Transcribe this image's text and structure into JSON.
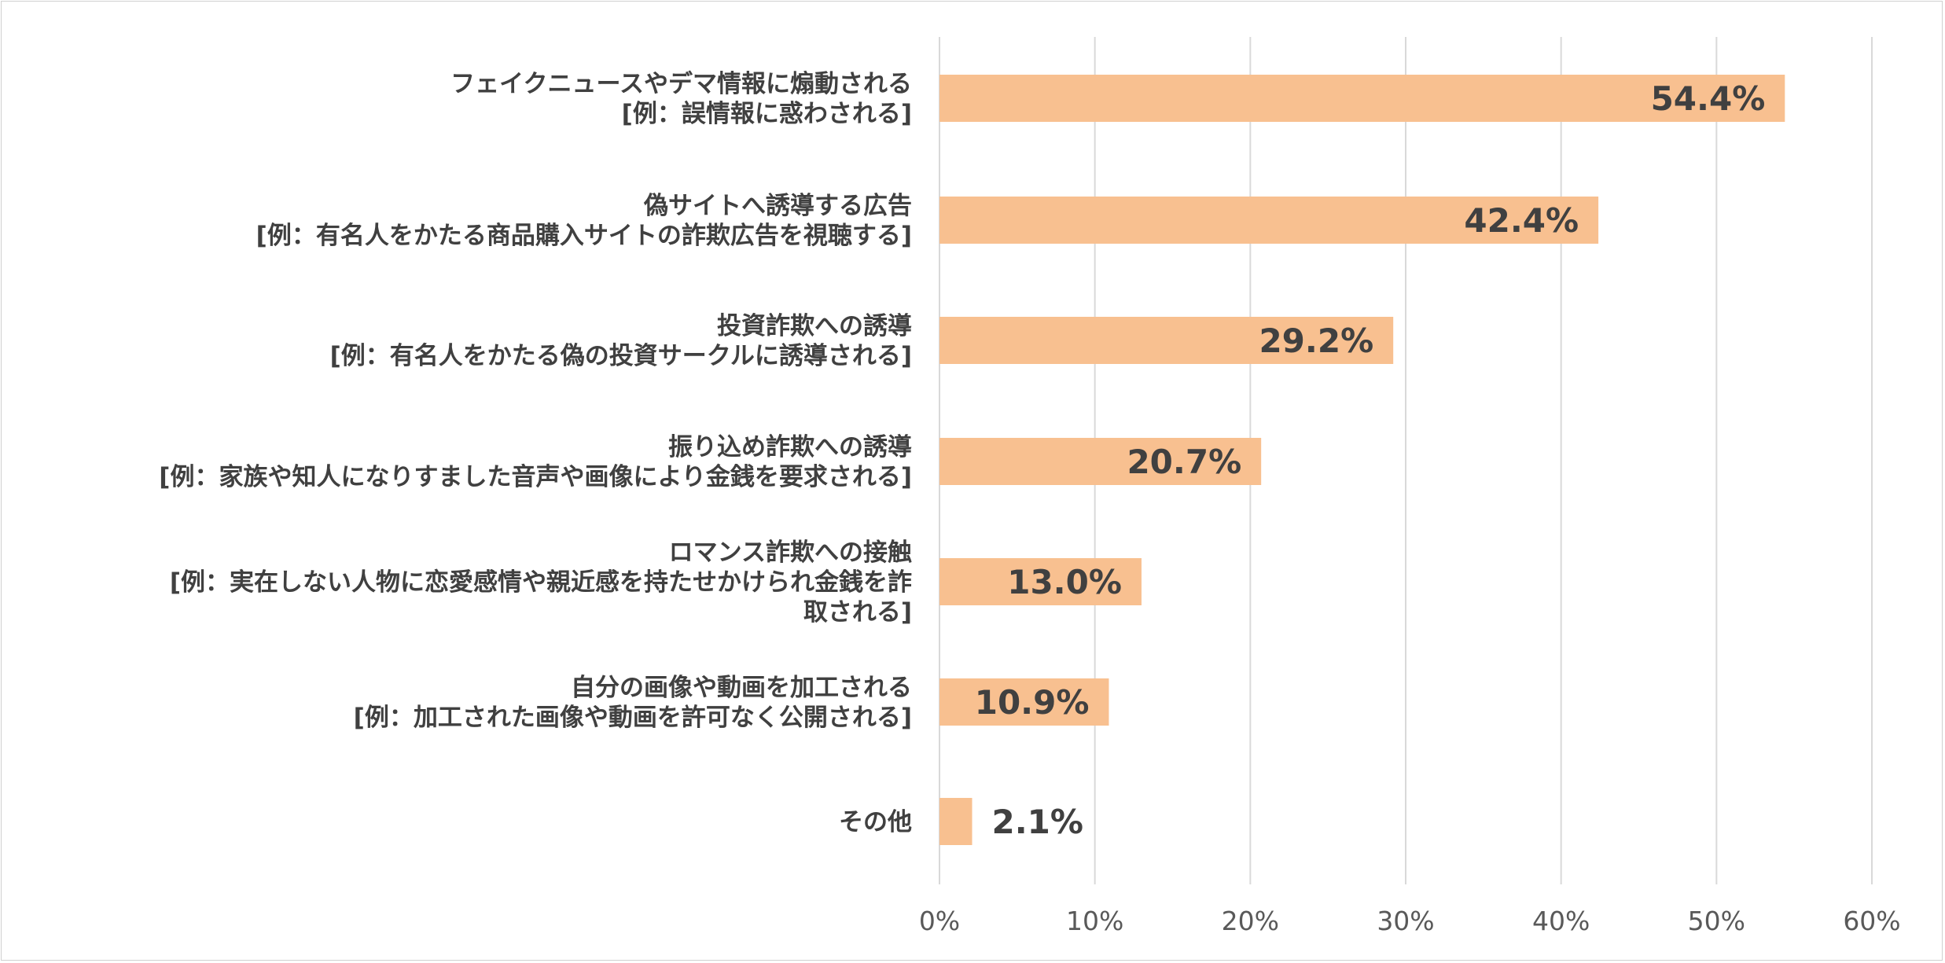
{
  "chart_data": {
    "type": "bar",
    "orientation": "horizontal",
    "categories": [
      [
        "フェイクニュースやデマ情報に煽動される",
        "[例：誤情報に惑わされる]"
      ],
      [
        "偽サイトへ誘導する広告",
        "[例：有名人をかたる商品購入サイトの詐欺広告を視聴する]"
      ],
      [
        "投資詐欺への誘導",
        "[例：有名人をかたる偽の投資サークルに誘導される]"
      ],
      [
        "振り込め詐欺への誘導",
        "[例：家族や知人になりすました音声や画像により金銭を要求される]"
      ],
      [
        "ロマンス詐欺への接触",
        "[例：実在しない人物に恋愛感情や親近感を持たせかけられ金銭を詐",
        "取される]"
      ],
      [
        "自分の画像や動画を加工される",
        "[例：加工された画像や動画を許可なく公開される]"
      ],
      [
        "その他"
      ]
    ],
    "values": [
      54.4,
      42.4,
      29.2,
      20.7,
      13.0,
      10.9,
      2.1
    ],
    "value_labels": [
      "54.4%",
      "42.4%",
      "29.2%",
      "20.7%",
      "13.0%",
      "10.9%",
      "2.1%"
    ],
    "xlim": [
      0,
      60
    ],
    "x_ticks": [
      0,
      10,
      20,
      30,
      40,
      50,
      60
    ],
    "x_tick_labels": [
      "0%",
      "10%",
      "20%",
      "30%",
      "40%",
      "50%",
      "60%"
    ],
    "grid": true,
    "legend": "none",
    "colors": {
      "bar": "#f8c090",
      "grid": "#d9d9d9",
      "text": "#404040"
    }
  }
}
